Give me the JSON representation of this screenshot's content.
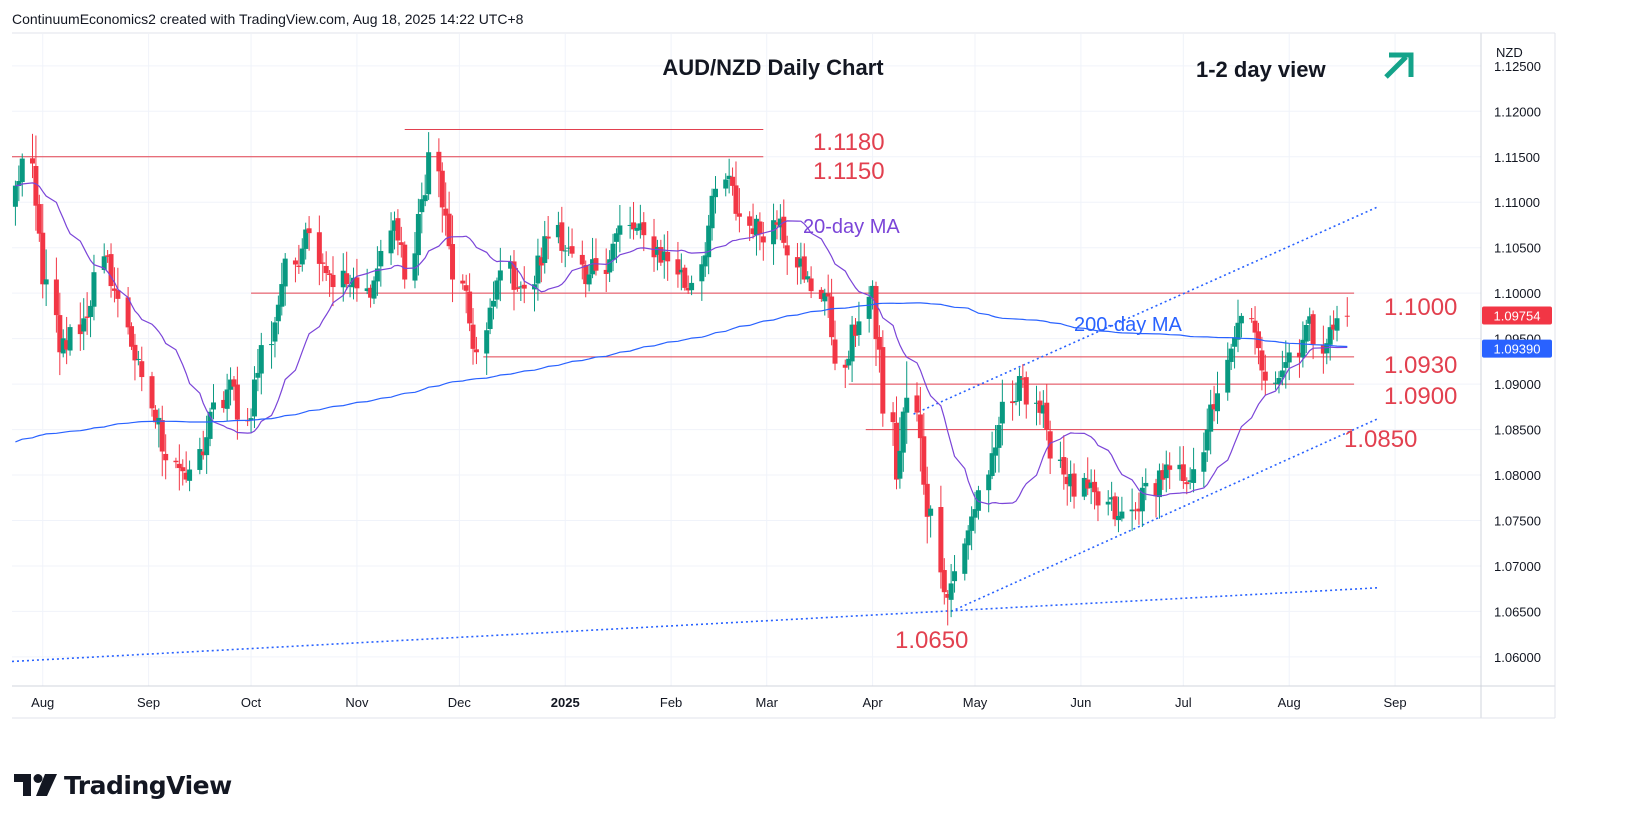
{
  "header": {
    "text": "ContinuumEconomics2 created with TradingView.com, Aug 18, 2025 14:22 UTC+8"
  },
  "brand": {
    "wordmark": "TradingView",
    "logo_icon": "tradingview-logo-icon"
  },
  "colors": {
    "candle_up": "#089981",
    "candle_down": "#f23645",
    "ma20": "#7b45d8",
    "ma200": "#2962ff",
    "level_line": "#e2404f",
    "annotation_red": "#e2404f",
    "trendline": "#2962ff",
    "arrow": "#14a38a",
    "axis_text": "#131722",
    "grid": "#f0f3fa"
  },
  "chart_data": {
    "type": "candlestick",
    "title": "AUD/NZD Daily Chart",
    "subtitle": "1-2 day view",
    "bias_icon": "up-right-arrow-icon",
    "currency_label": "NZD",
    "y_ticks": [
      "1.12500",
      "1.12000",
      "1.11500",
      "1.11000",
      "1.10500",
      "1.10000",
      "1.09500",
      "1.09000",
      "1.08500",
      "1.08000",
      "1.07500",
      "1.07000",
      "1.06500",
      "1.06000"
    ],
    "y_tick_values": [
      1.125,
      1.12,
      1.115,
      1.11,
      1.105,
      1.1,
      1.095,
      1.09,
      1.085,
      1.08,
      1.075,
      1.07,
      1.065,
      1.06
    ],
    "ylim": [
      1.0568,
      1.1285
    ],
    "x_ticks": [
      "Aug",
      "Sep",
      "Oct",
      "Nov",
      "Dec",
      "2025",
      "Feb",
      "Mar",
      "Apr",
      "May",
      "Jun",
      "Jul",
      "Aug",
      "Sep"
    ],
    "x_tick_dates": [
      "2024-08-01",
      "2024-09-01",
      "2024-10-01",
      "2024-11-01",
      "2024-12-01",
      "2025-01-01",
      "2025-02-01",
      "2025-03-01",
      "2025-04-01",
      "2025-05-01",
      "2025-06-01",
      "2025-07-01",
      "2025-08-01",
      "2025-09-01"
    ],
    "last_price": {
      "label": "1.09754",
      "value": 1.09754
    },
    "ma_price": {
      "label": "1.09390",
      "value": 1.0939
    },
    "moving_averages": [
      {
        "name": "20-day MA",
        "period": 20
      },
      {
        "name": "200-day MA",
        "period": 200
      }
    ],
    "levels": [
      {
        "label": "1.1180",
        "value": 1.118,
        "from": "2024-11-15",
        "to": "2025-02-28"
      },
      {
        "label": "1.1150",
        "value": 1.115,
        "from": "2024-07-23",
        "to": "2025-02-28"
      },
      {
        "label": "1.1000",
        "value": 1.1,
        "from": "2024-10-01",
        "to": "2025-08-20"
      },
      {
        "label": "1.0930",
        "value": 1.093,
        "from": "2024-12-08",
        "to": "2025-08-20"
      },
      {
        "label": "1.0900",
        "value": 1.09,
        "from": "2025-03-25",
        "to": "2025-08-20"
      },
      {
        "label": "1.0850",
        "value": 1.085,
        "from": "2025-03-30",
        "to": "2025-08-20"
      }
    ],
    "low_label": {
      "label": "1.0650",
      "value": 1.065,
      "date": "2025-04-24"
    },
    "trendlines": [
      {
        "from": [
          "2025-04-13",
          1.0867
        ],
        "to": [
          "2025-08-27",
          1.1095
        ]
      },
      {
        "from": [
          "2025-04-24",
          1.065
        ],
        "to": [
          "2025-08-27",
          1.0862
        ]
      },
      {
        "from": [
          "2024-07-23",
          1.0595
        ],
        "to": [
          "2025-08-27",
          1.0676
        ]
      }
    ],
    "segments": [
      {
        "from": "2024-07-23",
        "to": "2024-07-28",
        "open": 1.1095,
        "close": 1.1148,
        "vol": 1.0
      },
      {
        "from": "2024-07-28",
        "to": "2024-08-06",
        "open": 1.1148,
        "close": 1.0935,
        "vol": 1.4
      },
      {
        "from": "2024-08-06",
        "to": "2024-08-12",
        "open": 1.0935,
        "close": 1.0955,
        "vol": 1.2
      },
      {
        "from": "2024-08-12",
        "to": "2024-08-20",
        "open": 1.0955,
        "close": 1.104,
        "vol": 1.1
      },
      {
        "from": "2024-08-20",
        "to": "2024-09-03",
        "open": 1.104,
        "close": 1.0858,
        "vol": 1.0
      },
      {
        "from": "2024-09-03",
        "to": "2024-09-12",
        "open": 1.0858,
        "close": 1.0795,
        "vol": 1.2
      },
      {
        "from": "2024-09-12",
        "to": "2024-09-25",
        "open": 1.0795,
        "close": 1.0905,
        "vol": 1.0
      },
      {
        "from": "2024-09-25",
        "to": "2024-09-30",
        "open": 1.0905,
        "close": 1.086,
        "vol": 1.0
      },
      {
        "from": "2024-09-30",
        "to": "2024-10-10",
        "open": 1.086,
        "close": 1.101,
        "vol": 1.1
      },
      {
        "from": "2024-10-10",
        "to": "2024-10-17",
        "open": 1.101,
        "close": 1.107,
        "vol": 1.0
      },
      {
        "from": "2024-10-17",
        "to": "2024-10-24",
        "open": 1.107,
        "close": 1.102,
        "vol": 1.0
      },
      {
        "from": "2024-10-24",
        "to": "2024-11-05",
        "open": 1.102,
        "close": 1.0995,
        "vol": 1.0
      },
      {
        "from": "2024-11-05",
        "to": "2024-11-12",
        "open": 1.0995,
        "close": 1.108,
        "vol": 1.0
      },
      {
        "from": "2024-11-12",
        "to": "2024-11-17",
        "open": 1.108,
        "close": 1.1015,
        "vol": 1.0
      },
      {
        "from": "2024-11-17",
        "to": "2024-11-24",
        "open": 1.1015,
        "close": 1.1155,
        "vol": 1.1
      },
      {
        "from": "2024-11-24",
        "to": "2024-12-01",
        "open": 1.1155,
        "close": 1.1015,
        "vol": 1.3
      },
      {
        "from": "2024-12-01",
        "to": "2024-12-08",
        "open": 1.1015,
        "close": 1.0935,
        "vol": 1.1
      },
      {
        "from": "2024-12-08",
        "to": "2024-12-15",
        "open": 1.0935,
        "close": 1.1025,
        "vol": 1.0
      },
      {
        "from": "2024-12-15",
        "to": "2024-12-22",
        "open": 1.1025,
        "close": 1.1005,
        "vol": 0.9
      },
      {
        "from": "2024-12-22",
        "to": "2024-12-30",
        "open": 1.1005,
        "close": 1.1075,
        "vol": 1.0
      },
      {
        "from": "2024-12-30",
        "to": "2025-01-07",
        "open": 1.1075,
        "close": 1.101,
        "vol": 1.0
      },
      {
        "from": "2025-01-07",
        "to": "2025-01-20",
        "open": 1.101,
        "close": 1.1075,
        "vol": 1.0
      },
      {
        "from": "2025-01-20",
        "to": "2025-02-02",
        "open": 1.1075,
        "close": 1.1035,
        "vol": 1.0
      },
      {
        "from": "2025-02-02",
        "to": "2025-02-06",
        "open": 1.1035,
        "close": 1.1003,
        "vol": 1.0
      },
      {
        "from": "2025-02-06",
        "to": "2025-02-17",
        "open": 1.1003,
        "close": 1.1125,
        "vol": 1.0
      },
      {
        "from": "2025-02-17",
        "to": "2025-02-25",
        "open": 1.1125,
        "close": 1.1065,
        "vol": 1.2
      },
      {
        "from": "2025-02-25",
        "to": "2025-03-05",
        "open": 1.1065,
        "close": 1.1082,
        "vol": 1.0
      },
      {
        "from": "2025-03-05",
        "to": "2025-03-12",
        "open": 1.1082,
        "close": 1.1015,
        "vol": 1.0
      },
      {
        "from": "2025-03-12",
        "to": "2025-03-18",
        "open": 1.1015,
        "close": 1.1,
        "vol": 1.0
      },
      {
        "from": "2025-03-18",
        "to": "2025-03-24",
        "open": 1.1,
        "close": 1.0918,
        "vol": 1.1
      },
      {
        "from": "2025-03-24",
        "to": "2025-04-01",
        "open": 1.0918,
        "close": 1.1008,
        "vol": 1.0
      },
      {
        "from": "2025-04-01",
        "to": "2025-04-08",
        "open": 1.1008,
        "close": 1.0795,
        "vol": 1.8
      },
      {
        "from": "2025-04-08",
        "to": "2025-04-12",
        "open": 1.0795,
        "close": 1.0885,
        "vol": 1.8
      },
      {
        "from": "2025-04-12",
        "to": "2025-04-23",
        "open": 1.0885,
        "close": 1.0665,
        "vol": 1.6
      },
      {
        "from": "2025-04-23",
        "to": "2025-05-08",
        "open": 1.0665,
        "close": 1.0855,
        "vol": 1.1
      },
      {
        "from": "2025-05-08",
        "to": "2025-05-15",
        "open": 1.0855,
        "close": 1.0905,
        "vol": 1.0
      },
      {
        "from": "2025-05-15",
        "to": "2025-05-22",
        "open": 1.0905,
        "close": 1.085,
        "vol": 1.0
      },
      {
        "from": "2025-05-22",
        "to": "2025-05-28",
        "open": 1.085,
        "close": 1.079,
        "vol": 1.0
      },
      {
        "from": "2025-05-28",
        "to": "2025-06-12",
        "open": 1.079,
        "close": 1.0755,
        "vol": 1.0
      },
      {
        "from": "2025-06-12",
        "to": "2025-06-18",
        "open": 1.0755,
        "close": 1.076,
        "vol": 1.0
      },
      {
        "from": "2025-06-18",
        "to": "2025-06-24",
        "open": 1.076,
        "close": 1.0805,
        "vol": 1.0
      },
      {
        "from": "2025-06-24",
        "to": "2025-07-02",
        "open": 1.0805,
        "close": 1.079,
        "vol": 1.0
      },
      {
        "from": "2025-07-02",
        "to": "2025-07-08",
        "open": 1.079,
        "close": 1.085,
        "vol": 1.0
      },
      {
        "from": "2025-07-08",
        "to": "2025-07-18",
        "open": 1.085,
        "close": 1.0975,
        "vol": 1.1
      },
      {
        "from": "2025-07-18",
        "to": "2025-07-24",
        "open": 1.0975,
        "close": 1.0915,
        "vol": 1.0
      },
      {
        "from": "2025-07-24",
        "to": "2025-07-30",
        "open": 1.0915,
        "close": 1.0915,
        "vol": 0.9
      },
      {
        "from": "2025-07-30",
        "to": "2025-08-06",
        "open": 1.0915,
        "close": 1.0965,
        "vol": 1.0
      },
      {
        "from": "2025-08-06",
        "to": "2025-08-12",
        "open": 1.0965,
        "close": 1.0945,
        "vol": 1.0
      },
      {
        "from": "2025-08-12",
        "to": "2025-08-18",
        "open": 1.0945,
        "close": 1.0975,
        "vol": 1.0
      }
    ]
  }
}
